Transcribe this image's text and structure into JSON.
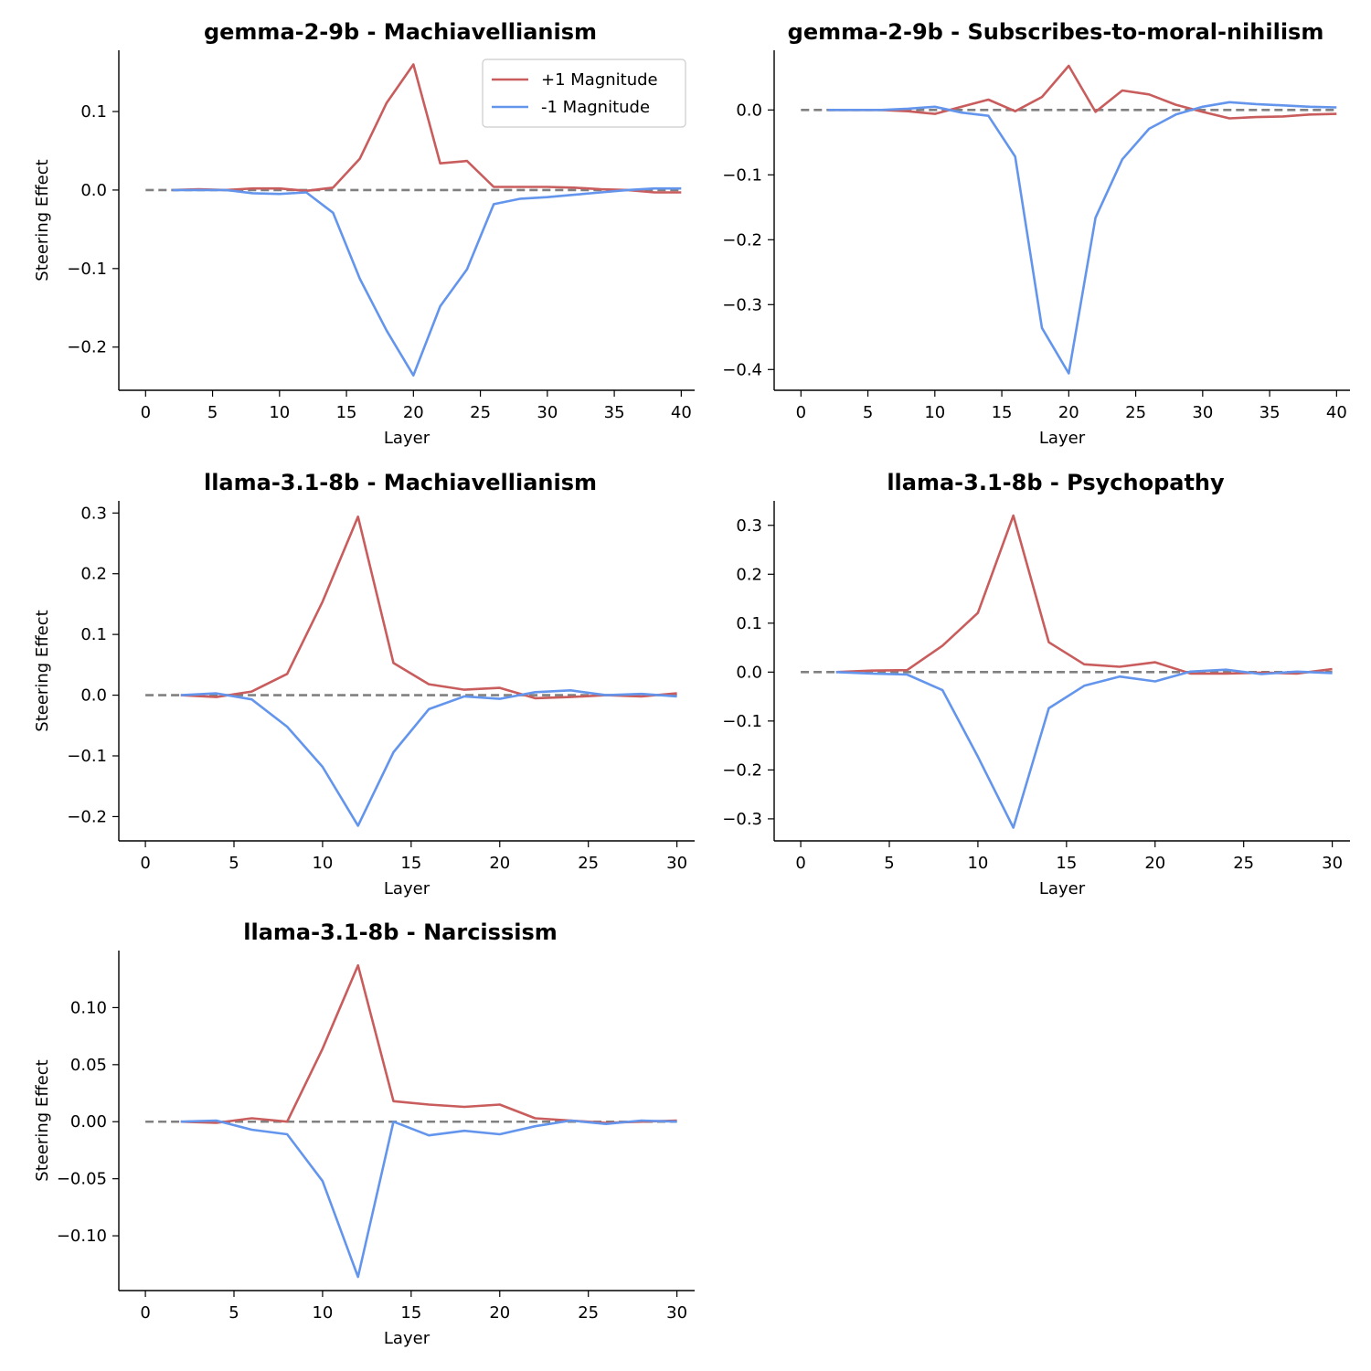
{
  "figure": {
    "panel_columns": 2
  },
  "chart_data": [
    {
      "type": "line",
      "title": "gemma-2-9b - Machiavellianism",
      "xlabel": "Layer",
      "ylabel": "Steering Effect",
      "xlim": [
        -2,
        41
      ],
      "ylim": [
        -0.255,
        0.178
      ],
      "xticks": [
        0,
        5,
        10,
        15,
        20,
        25,
        30,
        35,
        40
      ],
      "xtick_labels": [
        "0",
        "5",
        "10",
        "15",
        "20",
        "25",
        "30",
        "35",
        "40"
      ],
      "yticks": [
        0.1,
        0.0,
        -0.1,
        -0.2
      ],
      "ytick_labels": [
        "0.1",
        "0.0",
        "−0.1",
        "−0.2"
      ],
      "show_ylabel": true,
      "legend": {
        "placement": "top-right",
        "entries": [
          "+1 Magnitude",
          "-1 Magnitude"
        ]
      },
      "zero_line": true,
      "series": [
        {
          "name": "+1 Magnitude",
          "color": "#c95c5c",
          "x": [
            2,
            4,
            6,
            8,
            10,
            12,
            14,
            16,
            18,
            20,
            22,
            24,
            26,
            28,
            30,
            32,
            34,
            36,
            38,
            40
          ],
          "values": [
            0.0,
            0.001,
            0.0,
            0.002,
            0.002,
            -0.001,
            0.003,
            0.04,
            0.111,
            0.16,
            0.034,
            0.037,
            0.004,
            0.004,
            0.004,
            0.003,
            0.001,
            0.0,
            -0.003,
            -0.003
          ]
        },
        {
          "name": "-1 Magnitude",
          "color": "#6495ed",
          "x": [
            2,
            4,
            6,
            8,
            10,
            12,
            14,
            16,
            18,
            20,
            22,
            24,
            26,
            28,
            30,
            32,
            34,
            36,
            38,
            40
          ],
          "values": [
            0.0,
            0.0,
            0.0,
            -0.004,
            -0.005,
            -0.003,
            -0.029,
            -0.113,
            -0.179,
            -0.236,
            -0.148,
            -0.101,
            -0.018,
            -0.011,
            -0.009,
            -0.006,
            -0.003,
            0.0,
            0.002,
            0.002
          ]
        }
      ]
    },
    {
      "type": "line",
      "title": "gemma-2-9b - Subscribes-to-moral-nihilism",
      "xlabel": "Layer",
      "ylabel": "Steering Effect",
      "xlim": [
        -2,
        41
      ],
      "ylim": [
        -0.432,
        0.092
      ],
      "xticks": [
        0,
        5,
        10,
        15,
        20,
        25,
        30,
        35,
        40
      ],
      "xtick_labels": [
        "0",
        "5",
        "10",
        "15",
        "20",
        "25",
        "30",
        "35",
        "40"
      ],
      "yticks": [
        0.0,
        -0.1,
        -0.2,
        -0.3,
        -0.4
      ],
      "ytick_labels": [
        "0.0",
        "−0.1",
        "−0.2",
        "−0.3",
        "−0.4"
      ],
      "show_ylabel": false,
      "zero_line": true,
      "series": [
        {
          "name": "+1 Magnitude",
          "color": "#c95c5c",
          "x": [
            2,
            4,
            6,
            8,
            10,
            12,
            14,
            16,
            18,
            20,
            22,
            24,
            26,
            28,
            30,
            32,
            34,
            36,
            38,
            40
          ],
          "values": [
            0.0,
            0.0,
            0.0,
            -0.002,
            -0.006,
            0.005,
            0.016,
            -0.002,
            0.02,
            0.068,
            -0.003,
            0.03,
            0.024,
            0.008,
            -0.003,
            -0.013,
            -0.011,
            -0.01,
            -0.007,
            -0.006
          ]
        },
        {
          "name": "-1 Magnitude",
          "color": "#6495ed",
          "x": [
            2,
            4,
            6,
            8,
            10,
            12,
            14,
            16,
            18,
            20,
            22,
            24,
            26,
            28,
            30,
            32,
            34,
            36,
            38,
            40
          ],
          "values": [
            0.0,
            0.0,
            0.0,
            0.002,
            0.005,
            -0.004,
            -0.009,
            -0.072,
            -0.336,
            -0.406,
            -0.166,
            -0.076,
            -0.029,
            -0.007,
            0.005,
            0.012,
            0.009,
            0.007,
            0.005,
            0.004
          ]
        }
      ]
    },
    {
      "type": "line",
      "title": "llama-3.1-8b - Machiavellianism",
      "xlabel": "Layer",
      "ylabel": "Steering Effect",
      "xlim": [
        -1.5,
        31
      ],
      "ylim": [
        -0.24,
        0.32
      ],
      "xticks": [
        0,
        5,
        10,
        15,
        20,
        25,
        30
      ],
      "xtick_labels": [
        "0",
        "5",
        "10",
        "15",
        "20",
        "25",
        "30"
      ],
      "yticks": [
        0.3,
        0.2,
        0.1,
        0.0,
        -0.1,
        -0.2
      ],
      "ytick_labels": [
        "0.3",
        "0.2",
        "0.1",
        "0.0",
        "−0.1",
        "−0.2"
      ],
      "show_ylabel": true,
      "zero_line": true,
      "series": [
        {
          "name": "+1 Magnitude",
          "color": "#c95c5c",
          "x": [
            2,
            4,
            6,
            8,
            10,
            12,
            14,
            16,
            18,
            20,
            22,
            24,
            26,
            28,
            30
          ],
          "values": [
            0.0,
            -0.003,
            0.006,
            0.035,
            0.154,
            0.294,
            0.053,
            0.018,
            0.009,
            0.012,
            -0.005,
            -0.003,
            0.0,
            -0.002,
            0.003
          ]
        },
        {
          "name": "-1 Magnitude",
          "color": "#6495ed",
          "x": [
            2,
            4,
            6,
            8,
            10,
            12,
            14,
            16,
            18,
            20,
            22,
            24,
            26,
            28,
            30
          ],
          "values": [
            0.0,
            0.003,
            -0.007,
            -0.052,
            -0.118,
            -0.215,
            -0.094,
            -0.023,
            -0.002,
            -0.006,
            0.005,
            0.008,
            0.0,
            0.002,
            -0.002
          ]
        }
      ]
    },
    {
      "type": "line",
      "title": "llama-3.1-8b - Psychopathy",
      "xlabel": "Layer",
      "ylabel": "Steering Effect",
      "xlim": [
        -1.5,
        31
      ],
      "ylim": [
        -0.345,
        0.35
      ],
      "xticks": [
        0,
        5,
        10,
        15,
        20,
        25,
        30
      ],
      "xtick_labels": [
        "0",
        "5",
        "10",
        "15",
        "20",
        "25",
        "30"
      ],
      "yticks": [
        0.3,
        0.2,
        0.1,
        0.0,
        -0.1,
        -0.2,
        -0.3
      ],
      "ytick_labels": [
        "0.3",
        "0.2",
        "0.1",
        "0.0",
        "−0.1",
        "−0.2",
        "−0.3"
      ],
      "show_ylabel": false,
      "zero_line": true,
      "series": [
        {
          "name": "+1 Magnitude",
          "color": "#c95c5c",
          "x": [
            2,
            4,
            6,
            8,
            10,
            12,
            14,
            16,
            18,
            20,
            22,
            24,
            26,
            28,
            30
          ],
          "values": [
            0.0,
            0.003,
            0.004,
            0.054,
            0.121,
            0.32,
            0.061,
            0.016,
            0.011,
            0.02,
            -0.003,
            -0.003,
            -0.001,
            -0.003,
            0.006
          ]
        },
        {
          "name": "-1 Magnitude",
          "color": "#6495ed",
          "x": [
            2,
            4,
            6,
            8,
            10,
            12,
            14,
            16,
            18,
            20,
            22,
            24,
            26,
            28,
            30
          ],
          "values": [
            0.0,
            -0.003,
            -0.005,
            -0.037,
            -0.173,
            -0.318,
            -0.074,
            -0.028,
            -0.009,
            -0.019,
            0.001,
            0.005,
            -0.004,
            0.001,
            -0.002
          ]
        }
      ]
    },
    {
      "type": "line",
      "title": "llama-3.1-8b - Narcissism",
      "xlabel": "Layer",
      "ylabel": "Steering Effect",
      "xlim": [
        -1.5,
        31
      ],
      "ylim": [
        -0.148,
        0.15
      ],
      "xticks": [
        0,
        5,
        10,
        15,
        20,
        25,
        30
      ],
      "xtick_labels": [
        "0",
        "5",
        "10",
        "15",
        "20",
        "25",
        "30"
      ],
      "yticks": [
        0.1,
        0.05,
        0.0,
        -0.05,
        -0.1
      ],
      "ytick_labels": [
        "0.10",
        "0.05",
        "0.00",
        "−0.05",
        "−0.10"
      ],
      "show_ylabel": true,
      "zero_line": true,
      "series": [
        {
          "name": "+1 Magnitude",
          "color": "#c95c5c",
          "x": [
            2,
            4,
            6,
            8,
            10,
            12,
            14,
            16,
            18,
            20,
            22,
            24,
            26,
            28,
            30
          ],
          "values": [
            0.0,
            -0.001,
            0.003,
            0.0,
            0.064,
            0.137,
            0.018,
            0.015,
            0.013,
            0.015,
            0.003,
            0.001,
            -0.001,
            0.0,
            0.001
          ]
        },
        {
          "name": "-1 Magnitude",
          "color": "#6495ed",
          "x": [
            2,
            4,
            6,
            8,
            10,
            12,
            14,
            16,
            18,
            20,
            22,
            24,
            26,
            28,
            30
          ],
          "values": [
            0.0,
            0.001,
            -0.007,
            -0.011,
            -0.052,
            -0.136,
            0.0,
            -0.012,
            -0.008,
            -0.011,
            -0.004,
            0.001,
            -0.002,
            0.001,
            0.0
          ]
        }
      ]
    }
  ]
}
